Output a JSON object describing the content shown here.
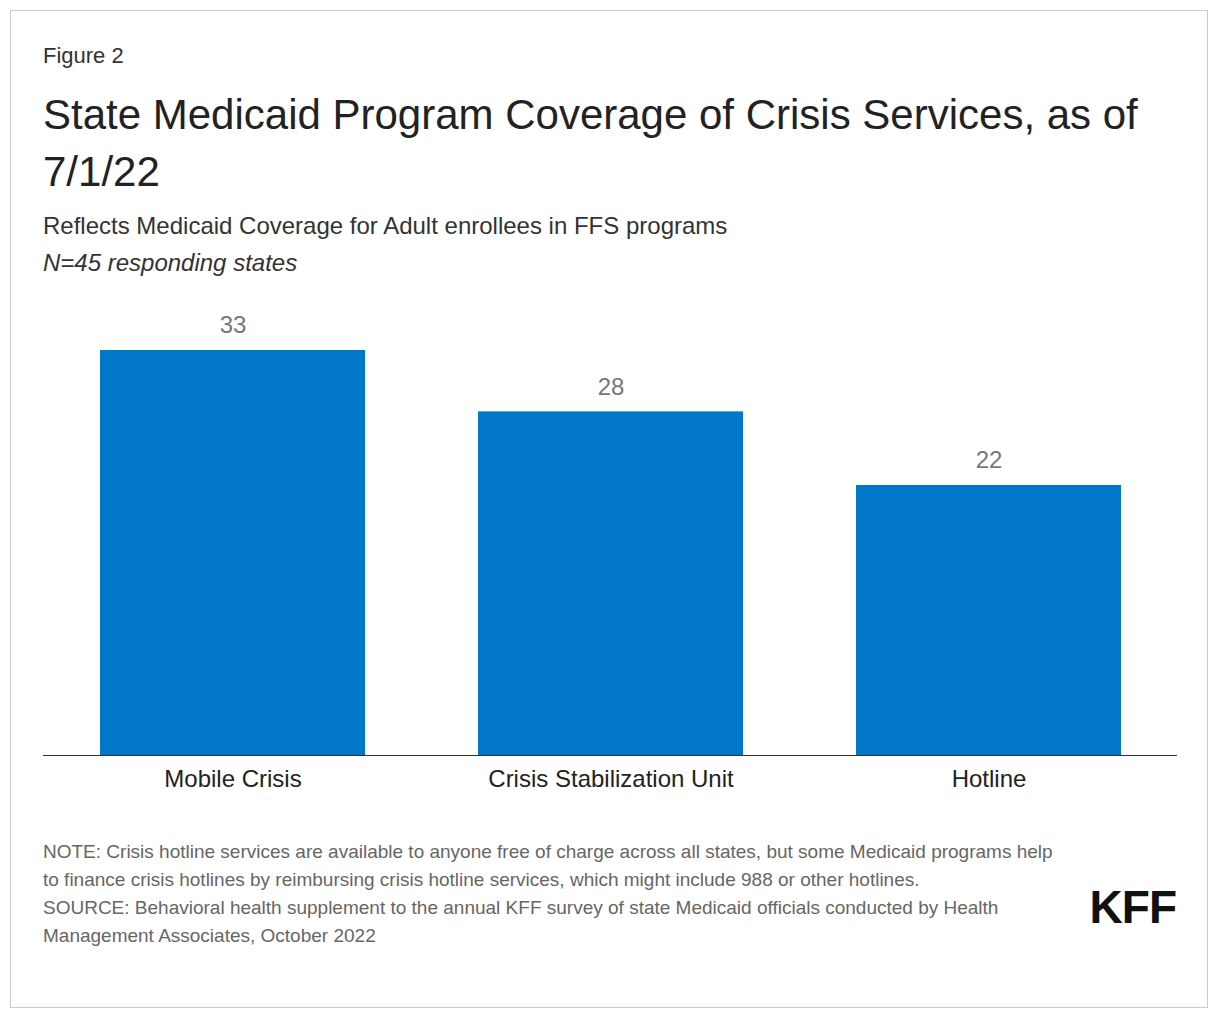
{
  "chart_data": {
    "type": "bar",
    "figure_label": "Figure 2",
    "title": "State Medicaid Program Coverage of Crisis Services, as of 7/1/22",
    "subtitle": "Reflects Medicaid Coverage for Adult enrollees in FFS programs",
    "subtitle_note": "N=45 responding states",
    "categories": [
      "Mobile Crisis",
      "Crisis Stabilization Unit",
      "Hotline"
    ],
    "values": [
      33,
      28,
      22
    ],
    "color": "#0077c8",
    "ylim": [
      0,
      33
    ],
    "grid": false,
    "data_labels": true,
    "tick_labels": "x",
    "note": "NOTE: Crisis hotline services are available to anyone free of charge across all states, but some Medicaid programs help to finance crisis hotlines by reimbursing crisis hotline services, which might include 988 or other hotlines.",
    "source": "SOURCE: Behavioral health supplement to the annual KFF survey of state Medicaid officials conducted by Health Management Associates, October 2022",
    "logo": "KFF"
  }
}
